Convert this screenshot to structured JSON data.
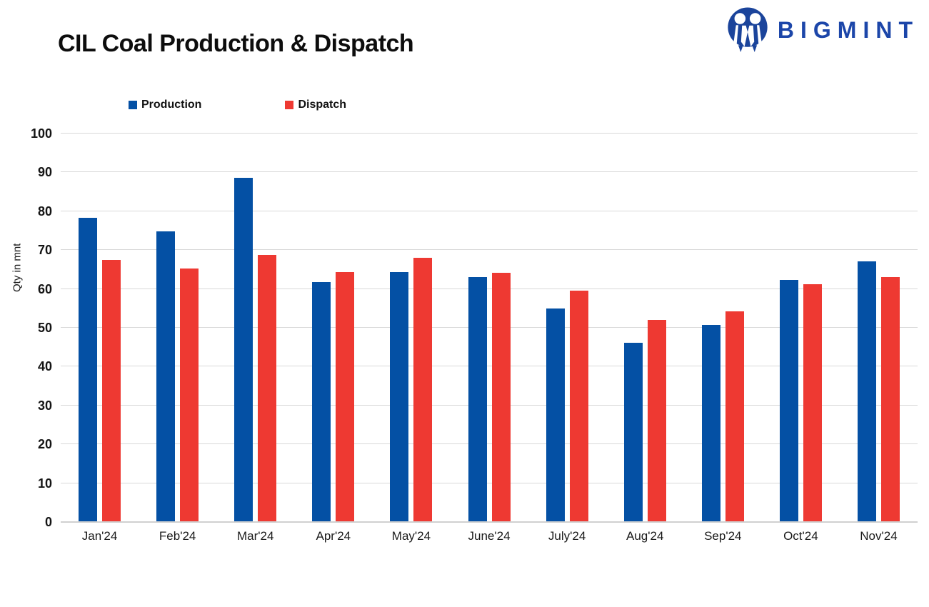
{
  "header": {
    "title": "CIL Coal Production & Dispatch"
  },
  "logo": {
    "brand": "BIGMINT",
    "icon": "bigmint-people-m-icon",
    "color": "#1c46a9"
  },
  "legend": {
    "items": [
      {
        "label": "Production",
        "color": "#0450a4"
      },
      {
        "label": "Dispatch",
        "color": "#ee3932"
      }
    ]
  },
  "chart_data": {
    "type": "bar",
    "title": "CIL Coal Production & Dispatch",
    "categories": [
      "Jan'24",
      "Feb'24",
      "Mar'24",
      "Apr'24",
      "May'24",
      "June'24",
      "July'24",
      "Aug'24",
      "Sep'24",
      "Oct'24",
      "Nov'24"
    ],
    "series": [
      {
        "name": "Production",
        "color": "#0450a4",
        "values": [
          78.4,
          74.8,
          88.6,
          61.8,
          64.4,
          63.0,
          54.9,
          46.1,
          50.8,
          62.4,
          67.1
        ]
      },
      {
        "name": "Dispatch",
        "color": "#ee3932",
        "values": [
          67.5,
          65.2,
          68.7,
          64.3,
          68.1,
          64.1,
          59.5,
          52.1,
          54.3,
          61.2,
          63.0
        ]
      }
    ],
    "xlabel": "",
    "ylabel": "Qty in mnt",
    "ylim": [
      0,
      100
    ],
    "ytick_step": 10,
    "yticks": [
      0,
      10,
      20,
      30,
      40,
      50,
      60,
      70,
      80,
      90,
      100
    ],
    "grid": true,
    "gridline_color": "#d9d9d9",
    "legend_position": "top-left",
    "background": "#ffffff"
  }
}
